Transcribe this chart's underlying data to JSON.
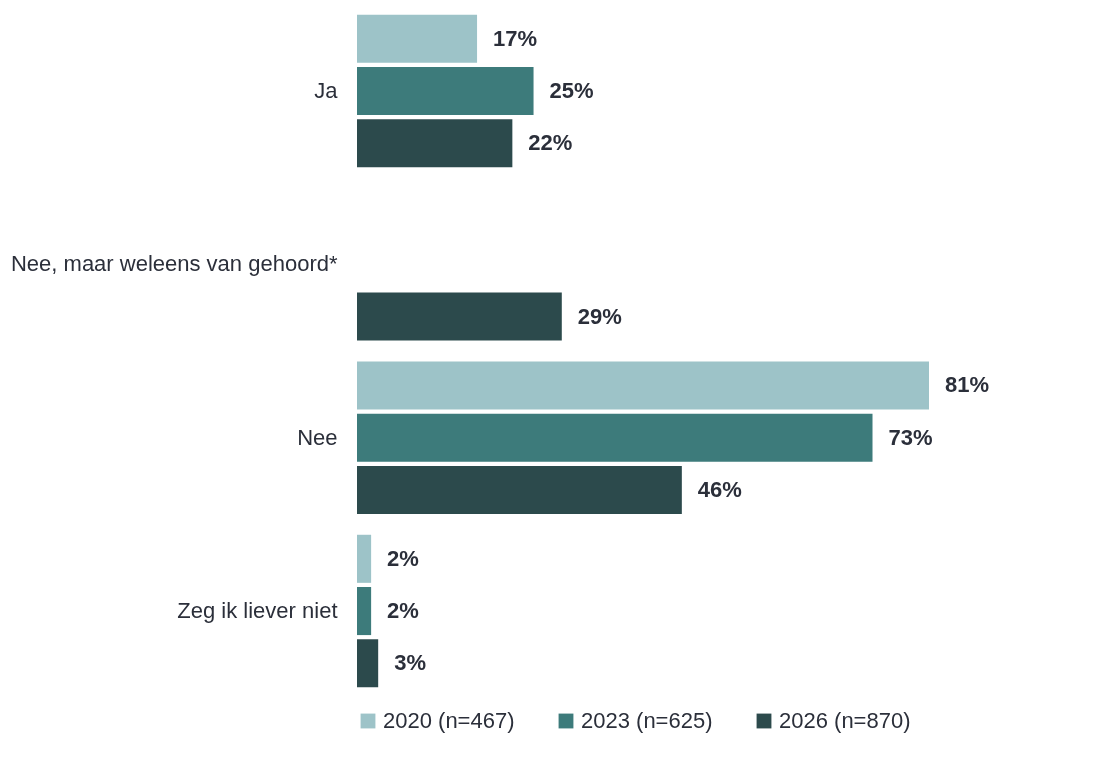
{
  "chart_data": {
    "type": "bar",
    "orientation": "horizontal",
    "categories": [
      "Ja",
      "Nee, maar weleens van gehoord*",
      "Nee",
      "Zeg ik liever niet"
    ],
    "series": [
      {
        "name": "2020 (n=467)",
        "color": "#9dc3c8",
        "values": [
          17,
          null,
          81,
          2
        ],
        "value_labels": [
          "17%",
          null,
          "81%",
          "2%"
        ]
      },
      {
        "name": "2023 (n=625)",
        "color": "#3d7b7b",
        "values": [
          25,
          null,
          73,
          2
        ],
        "value_labels": [
          "25%",
          null,
          "73%",
          "2%"
        ]
      },
      {
        "name": "2026 (n=870)",
        "color": "#2c4a4c",
        "values": [
          22,
          29,
          46,
          3
        ],
        "value_labels": [
          "22%",
          "29%",
          "46%",
          "3%"
        ]
      }
    ],
    "legend": "bottom"
  }
}
